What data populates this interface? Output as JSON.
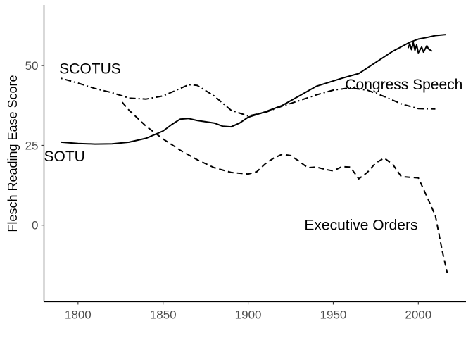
{
  "chart_data": {
    "type": "line",
    "title": "",
    "xlabel": "",
    "ylabel": "Flesch Reading Ease Score",
    "xlim": [
      1780,
      2028
    ],
    "ylim": [
      -24,
      69
    ],
    "x_ticks": [
      1800,
      1850,
      1900,
      1950,
      2000
    ],
    "y_ticks": [
      0,
      25,
      50
    ],
    "grid": false,
    "legend": "none",
    "series": [
      {
        "name": "SOTU",
        "line_style": "solid",
        "label_at": [
          1780,
          20
        ],
        "points": [
          [
            1790,
            26
          ],
          [
            1800,
            25.6
          ],
          [
            1810,
            25.4
          ],
          [
            1820,
            25.5
          ],
          [
            1830,
            26
          ],
          [
            1840,
            27.2
          ],
          [
            1850,
            29.5
          ],
          [
            1855,
            31.5
          ],
          [
            1860,
            33.2
          ],
          [
            1865,
            33.4
          ],
          [
            1870,
            32.8
          ],
          [
            1880,
            32
          ],
          [
            1885,
            31
          ],
          [
            1890,
            30.8
          ],
          [
            1895,
            32
          ],
          [
            1900,
            33.8
          ],
          [
            1910,
            35.5
          ],
          [
            1920,
            37.5
          ],
          [
            1930,
            40.5
          ],
          [
            1940,
            43.5
          ],
          [
            1955,
            46
          ],
          [
            1965,
            47.5
          ],
          [
            1975,
            51
          ],
          [
            1985,
            54.5
          ],
          [
            1995,
            57.3
          ],
          [
            2000,
            58.3
          ],
          [
            2005,
            58.8
          ],
          [
            2010,
            59.4
          ],
          [
            2016,
            59.7
          ]
        ]
      },
      {
        "name": "SCOTUS",
        "line_style": "dotdash",
        "label_at": [
          1789,
          47.5
        ],
        "points": [
          [
            1790,
            46
          ],
          [
            1800,
            44.5
          ],
          [
            1810,
            42.8
          ],
          [
            1820,
            41.5
          ],
          [
            1830,
            39.8
          ],
          [
            1840,
            39.5
          ],
          [
            1850,
            40.5
          ],
          [
            1860,
            42.8
          ],
          [
            1865,
            44
          ],
          [
            1870,
            43.8
          ],
          [
            1880,
            40.5
          ],
          [
            1890,
            36
          ],
          [
            1900,
            34.2
          ],
          [
            1910,
            35.3
          ],
          [
            1920,
            37.3
          ],
          [
            1930,
            39
          ],
          [
            1940,
            40.8
          ],
          [
            1950,
            42.3
          ],
          [
            1960,
            43
          ],
          [
            1970,
            42.3
          ],
          [
            1980,
            40.3
          ],
          [
            1990,
            38
          ],
          [
            2000,
            36.5
          ],
          [
            2010,
            36.4
          ]
        ]
      },
      {
        "name": "Congress Speech",
        "line_style": "solid",
        "label_at": [
          1957,
          42.5
        ],
        "points": [
          [
            1994,
            55.5
          ],
          [
            1995,
            56.8
          ],
          [
            1996,
            55
          ],
          [
            1997,
            57.2
          ],
          [
            1998,
            54.8
          ],
          [
            1999,
            56.5
          ],
          [
            2000,
            54
          ],
          [
            2002,
            55.8
          ],
          [
            2003,
            54.2
          ],
          [
            2005,
            56.2
          ],
          [
            2006,
            55.2
          ],
          [
            2008,
            54.5
          ]
        ]
      },
      {
        "name": "Executive Orders",
        "line_style": "dashed",
        "label_at": [
          1933,
          -1.5
        ],
        "points": [
          [
            1826,
            38.5
          ],
          [
            1830,
            36
          ],
          [
            1840,
            31
          ],
          [
            1850,
            27
          ],
          [
            1860,
            23.5
          ],
          [
            1870,
            20.5
          ],
          [
            1880,
            18
          ],
          [
            1890,
            16.5
          ],
          [
            1900,
            16
          ],
          [
            1905,
            16.7
          ],
          [
            1910,
            19.2
          ],
          [
            1915,
            21
          ],
          [
            1920,
            22.2
          ],
          [
            1925,
            21.8
          ],
          [
            1930,
            20
          ],
          [
            1935,
            18
          ],
          [
            1940,
            18.2
          ],
          [
            1945,
            17.5
          ],
          [
            1950,
            17
          ],
          [
            1955,
            18.3
          ],
          [
            1960,
            18.2
          ],
          [
            1965,
            14.5
          ],
          [
            1970,
            16.5
          ],
          [
            1975,
            19.5
          ],
          [
            1980,
            21
          ],
          [
            1985,
            19
          ],
          [
            1990,
            15.2
          ],
          [
            1995,
            15
          ],
          [
            2000,
            14.8
          ],
          [
            2005,
            9
          ],
          [
            2010,
            3
          ],
          [
            2014,
            -8
          ],
          [
            2017,
            -15
          ]
        ]
      }
    ]
  }
}
